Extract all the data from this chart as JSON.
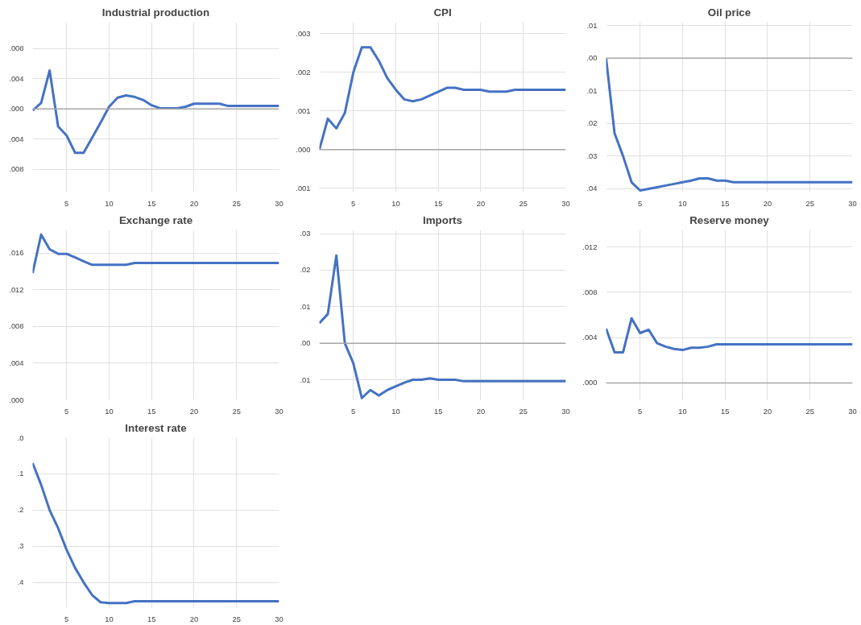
{
  "chart_data": [
    {
      "type": "line",
      "title": "Industrial production",
      "x": [
        1,
        2,
        3,
        4,
        5,
        6,
        7,
        8,
        9,
        10,
        11,
        12,
        13,
        14,
        15,
        16,
        17,
        18,
        19,
        20,
        21,
        22,
        23,
        24,
        25,
        26,
        27,
        28,
        29,
        30
      ],
      "series": [
        {
          "color": "#4472c4",
          "values": [
            -0.0002,
            0.0008,
            0.0051,
            -0.0023,
            -0.0035,
            -0.0058,
            -0.0058,
            -0.0038,
            -0.0018,
            0.0003,
            0.0015,
            0.0018,
            0.0016,
            0.0012,
            0.0005,
            0.0001,
            0.0001,
            0.0001,
            0.0003,
            0.0007,
            0.0007,
            0.0007,
            0.0007,
            0.0004,
            0.0004,
            0.0004,
            0.0004,
            0.0004,
            0.0004,
            0.0004
          ]
        }
      ],
      "xlim": [
        1,
        30
      ],
      "xticks": [
        5,
        10,
        15,
        20,
        25,
        30
      ],
      "ylim": [
        -0.011,
        0.0115
      ],
      "yticks": [
        {
          "value": -0.008,
          "label": ".008"
        },
        {
          "value": -0.004,
          "label": ".004"
        },
        {
          "value": 0,
          "label": ".000"
        },
        {
          "value": 0.004,
          "label": ".004"
        },
        {
          "value": 0.008,
          "label": ".008"
        }
      ],
      "ref_lines": [
        {
          "axis": "y",
          "value": 0,
          "color": "#a6a6a6"
        }
      ],
      "grid": true
    },
    {
      "type": "line",
      "title": "CPI",
      "x": [
        1,
        2,
        3,
        4,
        5,
        6,
        7,
        8,
        9,
        10,
        11,
        12,
        13,
        14,
        15,
        16,
        17,
        18,
        19,
        20,
        21,
        22,
        23,
        24,
        25,
        26,
        27,
        28,
        29,
        30
      ],
      "series": [
        {
          "color": "#4472c4",
          "values": [
            0,
            0.0008,
            0.00055,
            0.00095,
            0.002,
            0.00265,
            0.00265,
            0.0023,
            0.00185,
            0.00155,
            0.0013,
            0.00125,
            0.0013,
            0.0014,
            0.0015,
            0.0016,
            0.0016,
            0.00155,
            0.00155,
            0.00155,
            0.0015,
            0.0015,
            0.0015,
            0.00155,
            0.00155,
            0.00155,
            0.00155,
            0.00155,
            0.00155,
            0.00155
          ]
        }
      ],
      "xlim": [
        1,
        30
      ],
      "xticks": [
        5,
        10,
        15,
        20,
        25,
        30
      ],
      "ylim": [
        -0.0011,
        0.0033
      ],
      "yticks": [
        {
          "value": -0.001,
          "label": ".001"
        },
        {
          "value": 0,
          "label": ".000"
        },
        {
          "value": 0.001,
          "label": ".001"
        },
        {
          "value": 0.002,
          "label": ".002"
        },
        {
          "value": 0.003,
          "label": ".003"
        }
      ],
      "ref_lines": [
        {
          "axis": "y",
          "value": 0,
          "color": "#a6a6a6"
        }
      ],
      "grid": true
    },
    {
      "type": "line",
      "title": "Oil price",
      "x": [
        1,
        2,
        3,
        4,
        5,
        6,
        7,
        8,
        9,
        10,
        11,
        12,
        13,
        14,
        15,
        16,
        17,
        18,
        19,
        20,
        21,
        22,
        23,
        24,
        25,
        26,
        27,
        28,
        29,
        30
      ],
      "series": [
        {
          "color": "#4472c4",
          "values": [
            0,
            -0.023,
            -0.03,
            -0.038,
            -0.0405,
            -0.04,
            -0.0395,
            -0.039,
            -0.0385,
            -0.038,
            -0.0375,
            -0.0368,
            -0.0368,
            -0.0375,
            -0.0375,
            -0.038,
            -0.038,
            -0.038,
            -0.038,
            -0.038,
            -0.038,
            -0.038,
            -0.038,
            -0.038,
            -0.038,
            -0.038,
            -0.038,
            -0.038,
            -0.038,
            -0.038
          ]
        }
      ],
      "xlim": [
        1,
        30
      ],
      "xticks": [
        5,
        10,
        15,
        20,
        25,
        30
      ],
      "ylim": [
        -0.041,
        0.011
      ],
      "yticks": [
        {
          "value": -0.04,
          "label": ".04"
        },
        {
          "value": -0.03,
          "label": ".03"
        },
        {
          "value": -0.02,
          "label": ".02"
        },
        {
          "value": -0.01,
          "label": ".01"
        },
        {
          "value": 0,
          "label": ".00"
        },
        {
          "value": 0.01,
          "label": ".01"
        }
      ],
      "ref_lines": [
        {
          "axis": "y",
          "value": 0,
          "color": "#a6a6a6"
        }
      ],
      "grid": true
    },
    {
      "type": "line",
      "title": "Exchange rate",
      "x": [
        1,
        2,
        3,
        4,
        5,
        6,
        7,
        8,
        9,
        10,
        11,
        12,
        13,
        14,
        15,
        16,
        17,
        18,
        19,
        20,
        21,
        22,
        23,
        24,
        25,
        26,
        27,
        28,
        29,
        30
      ],
      "series": [
        {
          "color": "#4472c4",
          "values": [
            0.0138,
            0.018,
            0.0164,
            0.0159,
            0.0159,
            0.0155,
            0.0151,
            0.0147,
            0.0147,
            0.0147,
            0.0147,
            0.0147,
            0.0149,
            0.0149,
            0.0149,
            0.0149,
            0.0149,
            0.0149,
            0.0149,
            0.0149,
            0.0149,
            0.0149,
            0.0149,
            0.0149,
            0.0149,
            0.0149,
            0.0149,
            0.0149,
            0.0149,
            0.0149
          ]
        }
      ],
      "xlim": [
        1,
        30
      ],
      "xticks": [
        5,
        10,
        15,
        20,
        25,
        30
      ],
      "ylim": [
        0,
        0.0185
      ],
      "yticks": [
        {
          "value": 0,
          "label": ".000"
        },
        {
          "value": 0.004,
          "label": ".004"
        },
        {
          "value": 0.008,
          "label": ".008"
        },
        {
          "value": 0.012,
          "label": ".012"
        },
        {
          "value": 0.016,
          "label": ".016"
        }
      ],
      "grid": true
    },
    {
      "type": "line",
      "title": "Imports",
      "x": [
        1,
        2,
        3,
        4,
        5,
        6,
        7,
        8,
        9,
        10,
        11,
        12,
        13,
        14,
        15,
        16,
        17,
        18,
        19,
        20,
        21,
        22,
        23,
        24,
        25,
        26,
        27,
        28,
        29,
        30
      ],
      "series": [
        {
          "color": "#4472c4",
          "values": [
            0.0055,
            0.008,
            0.024,
            0,
            -0.0055,
            -0.015,
            -0.0128,
            -0.0143,
            -0.0128,
            -0.0118,
            -0.0108,
            -0.01,
            -0.01,
            -0.0096,
            -0.01,
            -0.01,
            -0.01,
            -0.0104,
            -0.0104,
            -0.0104,
            -0.0104,
            -0.0104,
            -0.0104,
            -0.0104,
            -0.0104,
            -0.0104,
            -0.0104,
            -0.0104,
            -0.0104,
            -0.0104
          ]
        }
      ],
      "xlim": [
        1,
        30
      ],
      "xticks": [
        5,
        10,
        15,
        20,
        25,
        30
      ],
      "ylim": [
        -0.0155,
        0.031
      ],
      "yticks": [
        {
          "value": -0.01,
          "label": ".01"
        },
        {
          "value": 0,
          "label": ".00"
        },
        {
          "value": 0.01,
          "label": ".01"
        },
        {
          "value": 0.02,
          "label": ".02"
        },
        {
          "value": 0.03,
          "label": ".03"
        }
      ],
      "ref_lines": [
        {
          "axis": "y",
          "value": 0,
          "color": "#a6a6a6"
        }
      ],
      "grid": true
    },
    {
      "type": "line",
      "title": "Reserve money",
      "x": [
        1,
        2,
        3,
        4,
        5,
        6,
        7,
        8,
        9,
        10,
        11,
        12,
        13,
        14,
        15,
        16,
        17,
        18,
        19,
        20,
        21,
        22,
        23,
        24,
        25,
        26,
        27,
        28,
        29,
        30
      ],
      "series": [
        {
          "color": "#4472c4",
          "values": [
            0.0048,
            0.0027,
            0.0027,
            0.0057,
            0.0044,
            0.0047,
            0.0035,
            0.0032,
            0.003,
            0.0029,
            0.0031,
            0.0031,
            0.0032,
            0.0034,
            0.0034,
            0.0034,
            0.0034,
            0.0034,
            0.0034,
            0.0034,
            0.0034,
            0.0034,
            0.0034,
            0.0034,
            0.0034,
            0.0034,
            0.0034,
            0.0034,
            0.0034,
            0.0034
          ]
        }
      ],
      "xlim": [
        1,
        30
      ],
      "xticks": [
        5,
        10,
        15,
        20,
        25,
        30
      ],
      "ylim": [
        -0.0015,
        0.0135
      ],
      "yticks": [
        {
          "value": 0,
          "label": ".000"
        },
        {
          "value": 0.004,
          "label": ".004"
        },
        {
          "value": 0.008,
          "label": ".008"
        },
        {
          "value": 0.012,
          "label": ".012"
        }
      ],
      "ref_lines": [
        {
          "axis": "y",
          "value": 0,
          "color": "#a6a6a6"
        }
      ],
      "grid": true
    },
    {
      "type": "line",
      "title": "Interest rate",
      "x": [
        1,
        2,
        3,
        4,
        5,
        6,
        7,
        8,
        9,
        10,
        11,
        12,
        13,
        14,
        15,
        16,
        17,
        18,
        19,
        20,
        21,
        22,
        23,
        24,
        25,
        26,
        27,
        28,
        29,
        30
      ],
      "series": [
        {
          "color": "#4472c4",
          "values": [
            -0.07,
            -0.13,
            -0.2,
            -0.25,
            -0.31,
            -0.36,
            -0.4,
            -0.435,
            -0.455,
            -0.457,
            -0.457,
            -0.457,
            -0.452,
            -0.452,
            -0.452,
            -0.452,
            -0.452,
            -0.452,
            -0.452,
            -0.452,
            -0.452,
            -0.452,
            -0.452,
            -0.452,
            -0.452,
            -0.452,
            -0.452,
            -0.452,
            -0.452,
            -0.452
          ]
        }
      ],
      "xlim": [
        1,
        30
      ],
      "xticks": [
        5,
        10,
        15,
        20,
        25,
        30
      ],
      "ylim": [
        -0.47,
        0
      ],
      "yticks": [
        {
          "value": -0.4,
          "label": ".4"
        },
        {
          "value": -0.3,
          "label": ".3"
        },
        {
          "value": -0.2,
          "label": ".2"
        },
        {
          "value": -0.1,
          "label": ".1"
        },
        {
          "value": 0,
          "label": ".0"
        }
      ],
      "grid": true
    }
  ]
}
